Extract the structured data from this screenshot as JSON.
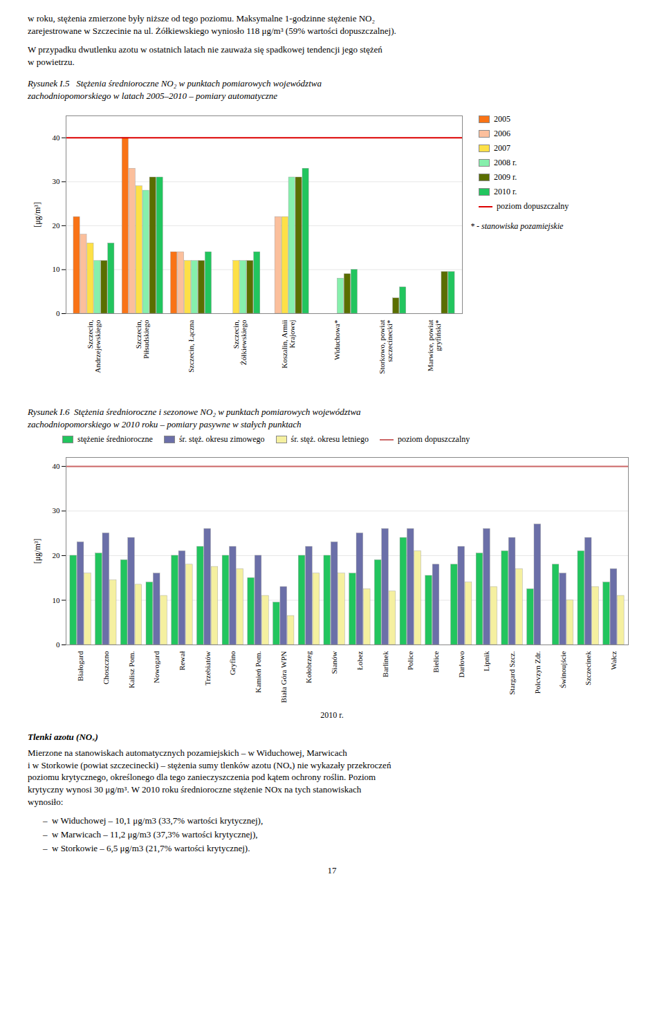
{
  "text_above": [
    "w roku, stężenia zmierzone były niższe od tego poziomu. Maksymalne 1-godzinne stężenie NO₂\nzarejestrowane w Szczecinie na ul. Żółkiewskiego wyniosło 118 μg/m³ (59% wartości dopuszczalnej).",
    "W przypadku dwutlenku azotu w ostatnich latach nie zauważa się spadkowej tendencji jego stężeń\nw powietrzu."
  ],
  "chart_data": [
    {
      "type": "bar",
      "title": "Rysunek I.5   Stężenia średnioroczne NO₂ w punktach pomiarowych województwa\nzachodniopomorskiego w latach 2005–2010 – pomiary automatyczne",
      "ylabel": "[μg/m³]",
      "categories": [
        "Szczecin,\nAndrzejewskiego",
        "Szczecin,\nPiłsudskiego",
        "Szczecin, Łączna",
        "Szczecin,\nŻółkiewskiego",
        "Koszalin, Armii\nKrajowej",
        "Widuchowa*",
        "Storkowo, powiat\nszczecinecki*",
        "Marwice, powiat\ngryfiński*"
      ],
      "series": [
        {
          "name": "2005",
          "color": "#f97316",
          "values": [
            22,
            40,
            14,
            null,
            null,
            null,
            null,
            null
          ]
        },
        {
          "name": "2006",
          "color": "#fbbf9c",
          "values": [
            18,
            33,
            14,
            null,
            22,
            null,
            null,
            null
          ]
        },
        {
          "name": "2007",
          "color": "#fde047",
          "values": [
            16,
            29,
            12,
            12,
            22,
            null,
            null,
            null
          ]
        },
        {
          "name": "2008 r.",
          "color": "#86efac",
          "values": [
            12,
            28,
            12,
            12,
            31,
            8,
            null,
            null
          ]
        },
        {
          "name": "2009 r.",
          "color": "#5a6e00",
          "values": [
            12,
            31,
            12,
            12,
            31,
            9,
            3.5,
            9.5
          ]
        },
        {
          "name": "2010 r.",
          "color": "#22c55e",
          "values": [
            16,
            31,
            14,
            14,
            33,
            10,
            6,
            9.5
          ]
        }
      ],
      "reference_lines": [
        {
          "name": "poziom dopuszczalny",
          "value": 40,
          "color": "#dd0000"
        }
      ],
      "ylim": [
        0,
        45
      ],
      "yticks": [
        0,
        10,
        20,
        30,
        40
      ],
      "grid": true,
      "legend": "right",
      "annotations": [
        "* - stanowiska pozamiejskie"
      ]
    },
    {
      "type": "bar",
      "title": "Rysunek I.6  Stężenia średnioroczne i sezonowe NO₂ w punktach pomiarowych województwa\nzachodniopomorskiego w 2010 roku – pomiary pasywne w stałych punktach",
      "ylabel": "[μg/m³]",
      "xlabel": "2010 r.",
      "categories": [
        "Białogard",
        "Choszczno",
        "Kalisz Pom.",
        "Nowogard",
        "Rewał",
        "Trzebiatów",
        "Gryfino",
        "Kamień Pom.",
        "Biała Góra WPN",
        "Kołobrzeg",
        "Sianów",
        "Łobez",
        "Barlinek",
        "Police",
        "Bielice",
        "Darłowo",
        "Lipnik",
        "Stargard Szcz.",
        "Polcvzyn Zdr.",
        "Świnoujście",
        "Szczecinek",
        "Wałcz"
      ],
      "series": [
        {
          "name": "stężenie średnioroczne",
          "color": "#22c55e",
          "values": [
            20,
            20.5,
            19,
            14,
            20,
            22,
            20,
            15,
            9.5,
            20,
            20,
            16,
            19,
            24,
            15.5,
            18,
            20.5,
            21,
            12.5,
            18,
            21,
            14
          ]
        },
        {
          "name": "śr. stęż. okresu zimowego",
          "color": "#6b6fa8",
          "values": [
            23,
            25,
            24,
            16,
            21,
            26,
            22,
            20,
            13,
            22,
            23,
            25,
            26,
            26,
            18,
            22,
            26,
            24,
            27,
            16,
            24,
            17
          ]
        },
        {
          "name": "śr. stęż. okresu letniego",
          "color": "#f5f0a0",
          "values": [
            16,
            14.5,
            13.5,
            11,
            18,
            17.5,
            17,
            11,
            6.5,
            16,
            16,
            12.5,
            12,
            21,
            null,
            14,
            13,
            17,
            null,
            10,
            13,
            11
          ]
        }
      ],
      "reference_lines": [
        {
          "name": "poziom dopuszczalny",
          "value": 40,
          "color": "#cc6666"
        }
      ],
      "ylim": [
        0,
        42
      ],
      "yticks": [
        0,
        10,
        20,
        30,
        40
      ],
      "grid": true,
      "legend": "top"
    }
  ],
  "text_below": {
    "heading": "Tlenki azotu (NOₓ)",
    "paragraphs": [
      "Mierzone na stanowiskach automatycznych pozamiejskich – w Widuchowej, Marwicach\ni w Storkowie (powiat szczecinecki) – stężenia sumy tlenków azotu (NOₓ) nie wykazały przekroczeń\npoziomu krytycznego, określonego dla tego zanieczyszczenia pod kątem ochrony roślin. Poziom\nkrytyczny wynosi 30 μg/m³. W 2010 roku średnioroczne stężenie NOx na tych stanowiskach\nwynosiło:"
    ],
    "list": [
      "–  w Widuchowej – 10,1 μg/m3 (33,7% wartości krytycznej),",
      "–  w Marwicach – 11,2 μg/m3 (37,3% wartości krytycznej),",
      "–  w Storkowie – 6,5 μg/m3 (21,7% wartości krytycznej)."
    ]
  },
  "page_number": 17
}
